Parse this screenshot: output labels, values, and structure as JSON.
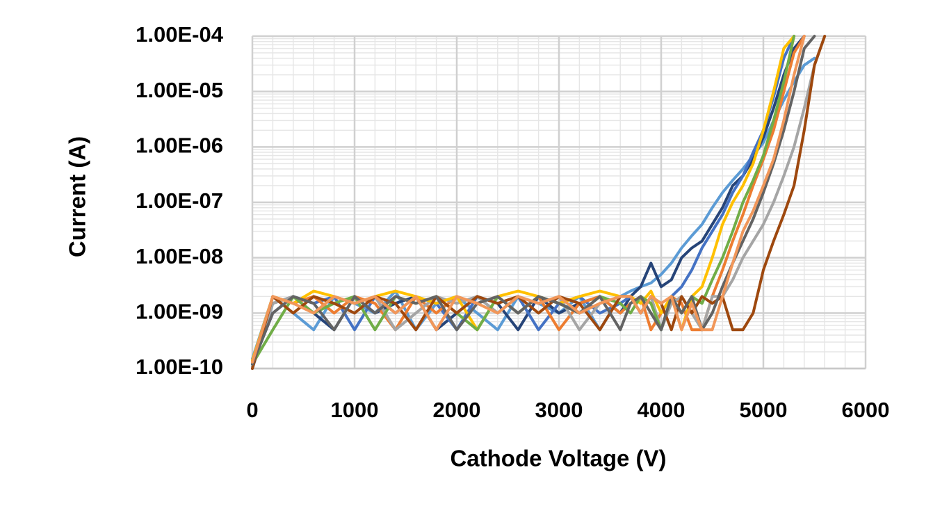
{
  "chart_data": {
    "type": "line",
    "x_label": "Cathode Voltage (V)",
    "y_label": "Current (A)",
    "y_log": true,
    "grid": true,
    "minor_grid": true,
    "xlim": [
      0,
      6000
    ],
    "xticks": [
      0,
      1000,
      2000,
      3000,
      4000,
      5000,
      6000
    ],
    "ylim": [
      1e-10,
      0.0001
    ],
    "yticks": [
      {
        "value": 1e-10,
        "label": "1.00E-10"
      },
      {
        "value": 1e-09,
        "label": "1.00E-09"
      },
      {
        "value": 1e-08,
        "label": "1.00E-08"
      },
      {
        "value": 1e-07,
        "label": "1.00E-07"
      },
      {
        "value": 1e-06,
        "label": "1.00E-06"
      },
      {
        "value": 1e-05,
        "label": "1.00E-05"
      },
      {
        "value": 0.0001,
        "label": "1.00E-04"
      }
    ],
    "x": [
      0,
      200,
      400,
      600,
      800,
      1000,
      1200,
      1400,
      1600,
      1800,
      2000,
      2200,
      2400,
      2600,
      2800,
      3000,
      3200,
      3400,
      3600,
      3700,
      3800,
      3900,
      4000,
      4100,
      4200,
      4300,
      4400,
      4500,
      4600,
      4700,
      4800,
      4900,
      5000,
      5100,
      5200,
      5300,
      5400,
      5500,
      5600
    ],
    "series": [
      {
        "color": "#5b9bd5",
        "values": [
          1.5e-10,
          2e-09,
          1e-09,
          5e-10,
          2e-09,
          1.5e-09,
          1e-09,
          2.5e-09,
          5e-10,
          1.5e-09,
          2e-09,
          1e-09,
          5e-10,
          2e-09,
          1.5e-09,
          1e-09,
          2e-09,
          5e-10,
          2e-09,
          2.5e-09,
          3e-09,
          3.5e-09,
          5e-09,
          8e-09,
          1.5e-08,
          2.5e-08,
          4e-08,
          8e-08,
          1.5e-07,
          2.5e-07,
          4e-07,
          7e-07,
          1.2e-06,
          3e-06,
          7e-06,
          1.5e-05,
          3e-05,
          4e-05,
          null
        ]
      },
      {
        "color": "#264478",
        "values": [
          1e-10,
          1.5e-09,
          2e-09,
          1e-09,
          5e-10,
          2e-09,
          1e-09,
          1.5e-09,
          2e-09,
          5e-10,
          1e-09,
          2e-09,
          1.5e-09,
          5e-10,
          2e-09,
          1e-09,
          1.5e-09,
          2e-09,
          1e-09,
          2e-09,
          3e-09,
          8e-09,
          3e-09,
          4e-09,
          1e-08,
          1.5e-08,
          2e-08,
          4e-08,
          8e-08,
          2e-07,
          3e-07,
          6e-07,
          1.5e-06,
          5e-06,
          2e-05,
          6e-05,
          0.0001,
          null,
          null
        ]
      },
      {
        "color": "#4472c4",
        "values": [
          1.2e-10,
          1e-09,
          2e-09,
          1.5e-09,
          2e-09,
          5e-10,
          2e-09,
          1e-09,
          2e-09,
          1.5e-09,
          5e-10,
          2e-09,
          1e-09,
          2e-09,
          5e-10,
          1.5e-09,
          2e-09,
          1e-09,
          1.5e-09,
          2e-09,
          1e-09,
          2e-09,
          5e-10,
          2e-09,
          3e-09,
          6e-09,
          1.5e-08,
          3e-08,
          6e-08,
          1.5e-07,
          3e-07,
          8e-07,
          2e-06,
          8e-06,
          4e-05,
          0.0001,
          null,
          null,
          null
        ]
      },
      {
        "color": "#ed7d31",
        "values": [
          1.3e-10,
          2e-09,
          1.5e-09,
          2e-09,
          1e-09,
          2e-09,
          1.5e-09,
          5e-10,
          2e-09,
          1e-09,
          2e-09,
          1.5e-09,
          2e-09,
          1e-09,
          2e-09,
          5e-10,
          1.5e-09,
          2e-09,
          1e-09,
          1.5e-09,
          2e-09,
          5e-10,
          1e-09,
          2e-09,
          1.5e-09,
          5e-10,
          5e-10,
          2e-09,
          6e-09,
          2e-08,
          6e-08,
          2e-07,
          6e-07,
          2e-06,
          1e-05,
          5e-05,
          0.0001,
          null,
          null
        ]
      },
      {
        "color": "#a5a5a5",
        "values": [
          1.1e-10,
          1.5e-09,
          2e-09,
          1e-09,
          2e-09,
          1.5e-09,
          2e-09,
          5e-10,
          1e-09,
          2e-09,
          1.5e-09,
          2e-09,
          1e-09,
          2e-09,
          1.5e-09,
          2e-09,
          5e-10,
          1.5e-09,
          2e-09,
          2e-09,
          1e-09,
          2e-09,
          5e-10,
          1.5e-09,
          2e-09,
          1e-09,
          5e-10,
          2e-09,
          2e-09,
          4e-09,
          1e-08,
          2e-08,
          4e-08,
          1e-07,
          3e-07,
          1e-06,
          5e-06,
          3e-05,
          0.0001
        ]
      },
      {
        "color": "#ffc000",
        "values": [
          1.4e-10,
          2e-09,
          1.5e-09,
          2.5e-09,
          2e-09,
          1.5e-09,
          2e-09,
          2.5e-09,
          2e-09,
          1.5e-09,
          2e-09,
          5e-10,
          2e-09,
          2.5e-09,
          2e-09,
          1.5e-09,
          2e-09,
          2.5e-09,
          2e-09,
          2e-09,
          1.5e-09,
          2.5e-09,
          1e-09,
          2e-09,
          5e-10,
          2e-09,
          3e-09,
          1e-08,
          4e-08,
          1e-07,
          2e-07,
          5e-07,
          2e-06,
          1e-05,
          6e-05,
          0.0001,
          null,
          null,
          null
        ]
      },
      {
        "color": "#70ad47",
        "values": [
          1.2e-10,
          5e-10,
          2e-09,
          1e-09,
          1.5e-09,
          2e-09,
          5e-10,
          2e-09,
          1.5e-09,
          2e-09,
          1e-09,
          5e-10,
          2e-09,
          1e-09,
          2e-09,
          1.5e-09,
          1e-09,
          2e-09,
          1.5e-09,
          1e-09,
          2e-09,
          1.5e-09,
          5e-10,
          2e-09,
          1e-09,
          2e-09,
          1.5e-09,
          4e-09,
          1e-08,
          3e-08,
          1e-07,
          2.5e-07,
          7e-07,
          3e-06,
          1.5e-05,
          0.0001,
          null,
          null,
          null
        ]
      },
      {
        "color": "#9e480e",
        "values": [
          1e-10,
          2e-09,
          1e-09,
          2e-09,
          1.5e-09,
          1e-09,
          2e-09,
          1.5e-09,
          5e-10,
          2e-09,
          1e-09,
          2e-09,
          1.5e-09,
          2e-09,
          1e-09,
          2e-09,
          1.5e-09,
          5e-10,
          2e-09,
          2e-09,
          1e-09,
          2e-09,
          1.5e-09,
          5e-10,
          2e-09,
          1e-09,
          2e-09,
          1.5e-09,
          2e-09,
          5e-10,
          5e-10,
          1e-09,
          6e-09,
          2e-08,
          6e-08,
          2e-07,
          2e-06,
          3e-05,
          0.0001
        ]
      },
      {
        "color": "#636363",
        "values": [
          1.2e-10,
          1e-09,
          2e-09,
          1.5e-09,
          5e-10,
          2e-09,
          1e-09,
          2e-09,
          1.5e-09,
          2e-09,
          5e-10,
          1.5e-09,
          2e-09,
          1e-09,
          2e-09,
          1.5e-09,
          1e-09,
          2e-09,
          5e-10,
          1.5e-09,
          2e-09,
          1e-09,
          5e-10,
          2e-09,
          1e-09,
          2e-09,
          5e-10,
          1e-09,
          3e-09,
          8e-09,
          2e-08,
          5e-08,
          1.5e-07,
          5e-07,
          2e-06,
          1e-05,
          6e-05,
          0.0001,
          null
        ]
      },
      {
        "color": "#f1975a",
        "values": [
          1.3e-10,
          2e-09,
          1.5e-09,
          1e-09,
          2e-09,
          1.5e-09,
          2e-09,
          1e-09,
          2e-09,
          5e-10,
          2e-09,
          1.5e-09,
          1e-09,
          2e-09,
          1.5e-09,
          2e-09,
          1e-09,
          1.5e-09,
          2e-09,
          2e-09,
          1e-09,
          2e-09,
          1.5e-09,
          2e-09,
          5e-10,
          1.5e-09,
          5e-10,
          5e-10,
          2e-09,
          8e-09,
          3e-08,
          7e-08,
          2e-07,
          6e-07,
          3e-06,
          2e-05,
          0.0001,
          null,
          null
        ]
      }
    ]
  }
}
